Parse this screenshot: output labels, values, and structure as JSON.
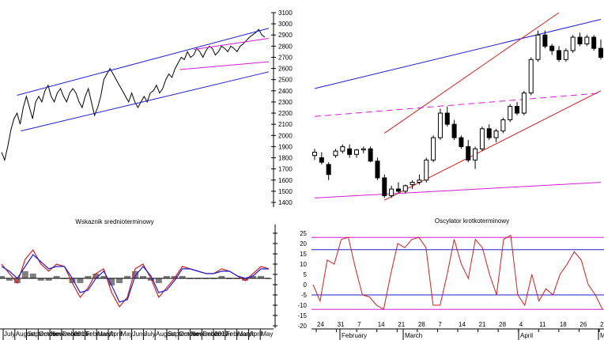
{
  "chart_data": [
    {
      "type": "line",
      "panel": "long-term-price",
      "title": "",
      "xlabel": "",
      "ylabel": "",
      "ylim": [
        1400,
        3100
      ],
      "x_tick_labels": [
        "July",
        "August",
        "September",
        "October",
        "November",
        "December",
        "2016",
        "February",
        "March",
        "April",
        "May",
        "June",
        "July",
        "August",
        "September",
        "October",
        "November",
        "December",
        "2017",
        "February",
        "March",
        "April",
        "May"
      ],
      "series": [
        {
          "color": "#000000",
          "x": [
            0,
            4,
            8,
            12,
            16,
            20,
            24,
            28,
            32,
            36,
            40,
            44,
            48,
            52,
            56,
            60,
            64,
            68,
            72,
            76,
            80,
            84,
            88,
            92,
            96,
            100,
            104,
            108,
            112,
            116,
            120,
            124,
            128,
            132,
            136,
            140,
            144,
            148,
            152,
            156,
            160,
            164,
            168,
            172,
            176,
            180,
            184,
            188,
            192,
            196,
            200,
            204,
            208,
            212,
            216,
            220,
            224,
            228,
            232,
            236,
            240,
            244,
            248,
            252,
            256,
            260,
            264,
            268,
            272,
            276,
            280,
            284,
            288,
            292,
            296,
            300,
            304,
            308,
            312,
            316,
            320,
            324,
            328,
            332,
            336,
            340
          ],
          "values": [
            1850,
            1780,
            1900,
            2050,
            2150,
            2200,
            2100,
            2250,
            2350,
            2250,
            2150,
            2300,
            2350,
            2300,
            2400,
            2450,
            2350,
            2300,
            2380,
            2420,
            2350,
            2300,
            2380,
            2420,
            2380,
            2300,
            2250,
            2350,
            2420,
            2300,
            2180,
            2250,
            2350,
            2500,
            2550,
            2600,
            2550,
            2500,
            2450,
            2400,
            2350,
            2300,
            2380,
            2300,
            2250,
            2300,
            2350,
            2300,
            2380,
            2400,
            2450,
            2380,
            2420,
            2500,
            2550,
            2520,
            2600,
            2650,
            2700,
            2680,
            2750,
            2700,
            2720,
            2780,
            2750,
            2700,
            2760,
            2800,
            2780,
            2720,
            2750,
            2800,
            2780,
            2750,
            2800,
            2780,
            2750,
            2800,
            2820,
            2850,
            2880,
            2900,
            2920,
            2950,
            2900,
            2880
          ]
        }
      ],
      "trendlines": [
        {
          "color": "#1e1ed2",
          "from": [
            20,
            2360
          ],
          "to": [
            345,
            2960
          ]
        },
        {
          "color": "#1e1ed2",
          "from": [
            25,
            2040
          ],
          "to": [
            345,
            2570
          ]
        },
        {
          "color": "#d21ed2",
          "from": [
            248,
            2770
          ],
          "to": [
            345,
            2870
          ]
        },
        {
          "color": "#d21ed2",
          "from": [
            230,
            2590
          ],
          "to": [
            345,
            2660
          ]
        }
      ]
    },
    {
      "type": "bar",
      "panel": "medium-term-indicator",
      "title": "Wskaznik srednioterminowy",
      "xlabel": "",
      "ylabel": "",
      "categories": [
        "July",
        "August",
        "September",
        "October",
        "November",
        "December",
        "2016",
        "February",
        "March",
        "April",
        "May",
        "June",
        "July",
        "August",
        "September",
        "October",
        "November",
        "December",
        "2017",
        "February",
        "March",
        "April",
        "May"
      ],
      "series": [
        {
          "color": "#d21e1e",
          "x": [
            0,
            10,
            20,
            30,
            40,
            50,
            60,
            70,
            80,
            90,
            100,
            110,
            120,
            130,
            140,
            150,
            160,
            170,
            180,
            190,
            200,
            210,
            220,
            230,
            240,
            250,
            260,
            270,
            280,
            290,
            300,
            310,
            320,
            330,
            340
          ],
          "values": [
            0.6,
            0.2,
            -0.2,
            0.8,
            1.2,
            0.6,
            0.3,
            0.6,
            0.5,
            -0.2,
            -0.8,
            -0.4,
            0.2,
            0.4,
            -0.6,
            -1.2,
            -0.8,
            0.4,
            0.6,
            0.0,
            -0.8,
            -0.4,
            0.0,
            0.5,
            0.4,
            0.3,
            0.2,
            0.2,
            0.4,
            0.3,
            0.1,
            -0.1,
            0.2,
            0.5,
            0.4
          ]
        },
        {
          "color": "#1e1ed2",
          "x": [
            0,
            10,
            20,
            30,
            40,
            50,
            60,
            70,
            80,
            90,
            100,
            110,
            120,
            130,
            140,
            150,
            160,
            170,
            180,
            190,
            200,
            210,
            220,
            230,
            240,
            250,
            260,
            270,
            280,
            290,
            300,
            310,
            320,
            330,
            340
          ],
          "values": [
            0.5,
            0.3,
            0.0,
            0.5,
            1.0,
            0.7,
            0.4,
            0.5,
            0.5,
            0.0,
            -0.6,
            -0.5,
            0.0,
            0.3,
            -0.3,
            -1.0,
            -0.9,
            0.1,
            0.5,
            0.1,
            -0.6,
            -0.5,
            -0.1,
            0.4,
            0.4,
            0.3,
            0.2,
            0.2,
            0.3,
            0.3,
            0.1,
            0.0,
            0.1,
            0.4,
            0.4
          ]
        }
      ],
      "histogram": [
        0.1,
        -0.1,
        -0.2,
        0.3,
        0.2,
        -0.1,
        -0.1,
        0.1,
        0.0,
        -0.2,
        -0.2,
        0.1,
        0.2,
        0.1,
        -0.3,
        -0.2,
        0.1,
        0.3,
        0.1,
        -0.1,
        -0.2,
        0.1,
        0.1,
        0.1,
        0.0,
        0.0,
        0.0,
        0.0,
        0.1,
        0.0,
        0.0,
        -0.1,
        0.1,
        0.1,
        0.0
      ],
      "histogram_color": "#808080",
      "zero_line_color": "#000000"
    },
    {
      "type": "candlestick",
      "panel": "short-term-price",
      "title": "",
      "xlabel": "",
      "ylabel": "",
      "ylim": [
        1400,
        3100
      ],
      "x_tick_labels": [
        "24",
        "31",
        "7",
        "14",
        "21",
        "28",
        "7",
        "14",
        "21",
        "28",
        "4",
        "11",
        "18",
        "26",
        "2"
      ],
      "month_labels": [
        "February",
        "March",
        "April",
        "M"
      ],
      "candles": [
        {
          "o": 1820,
          "h": 1880,
          "l": 1780,
          "c": 1850
        },
        {
          "o": 1800,
          "h": 1850,
          "l": 1740,
          "c": 1760
        },
        {
          "o": 1740,
          "h": 1760,
          "l": 1600,
          "c": 1650
        },
        {
          "o": 1820,
          "h": 1880,
          "l": 1800,
          "c": 1860
        },
        {
          "o": 1860,
          "h": 1920,
          "l": 1840,
          "c": 1900
        },
        {
          "o": 1880,
          "h": 1920,
          "l": 1800,
          "c": 1830
        },
        {
          "o": 1830,
          "h": 1880,
          "l": 1800,
          "c": 1870
        },
        {
          "o": 1870,
          "h": 1900,
          "l": 1840,
          "c": 1880
        },
        {
          "o": 1880,
          "h": 1900,
          "l": 1760,
          "c": 1770
        },
        {
          "o": 1770,
          "h": 1800,
          "l": 1600,
          "c": 1620
        },
        {
          "o": 1620,
          "h": 1650,
          "l": 1440,
          "c": 1460
        },
        {
          "o": 1460,
          "h": 1550,
          "l": 1440,
          "c": 1520
        },
        {
          "o": 1520,
          "h": 1580,
          "l": 1480,
          "c": 1500
        },
        {
          "o": 1500,
          "h": 1560,
          "l": 1480,
          "c": 1550
        },
        {
          "o": 1560,
          "h": 1600,
          "l": 1520,
          "c": 1580
        },
        {
          "o": 1580,
          "h": 1650,
          "l": 1560,
          "c": 1600
        },
        {
          "o": 1600,
          "h": 1800,
          "l": 1580,
          "c": 1780
        },
        {
          "o": 1780,
          "h": 2000,
          "l": 1760,
          "c": 1980
        },
        {
          "o": 1980,
          "h": 2240,
          "l": 1960,
          "c": 2200
        },
        {
          "o": 2200,
          "h": 2260,
          "l": 2080,
          "c": 2100
        },
        {
          "o": 2100,
          "h": 2140,
          "l": 1960,
          "c": 1980
        },
        {
          "o": 1980,
          "h": 2000,
          "l": 1880,
          "c": 1900
        },
        {
          "o": 1900,
          "h": 1960,
          "l": 1760,
          "c": 1780
        },
        {
          "o": 1780,
          "h": 1900,
          "l": 1700,
          "c": 1880
        },
        {
          "o": 1880,
          "h": 2080,
          "l": 1860,
          "c": 2060
        },
        {
          "o": 2060,
          "h": 2100,
          "l": 1960,
          "c": 1980
        },
        {
          "o": 1980,
          "h": 2060,
          "l": 1940,
          "c": 2040
        },
        {
          "o": 2040,
          "h": 2160,
          "l": 2020,
          "c": 2140
        },
        {
          "o": 2140,
          "h": 2280,
          "l": 2120,
          "c": 2260
        },
        {
          "o": 2260,
          "h": 2300,
          "l": 2180,
          "c": 2200
        },
        {
          "o": 2200,
          "h": 2400,
          "l": 2180,
          "c": 2380
        },
        {
          "o": 2380,
          "h": 2700,
          "l": 2360,
          "c": 2680
        },
        {
          "o": 2680,
          "h": 2940,
          "l": 2660,
          "c": 2900
        },
        {
          "o": 2900,
          "h": 2940,
          "l": 2780,
          "c": 2800
        },
        {
          "o": 2800,
          "h": 2820,
          "l": 2720,
          "c": 2760
        },
        {
          "o": 2760,
          "h": 2800,
          "l": 2660,
          "c": 2680
        },
        {
          "o": 2680,
          "h": 2780,
          "l": 2660,
          "c": 2760
        },
        {
          "o": 2760,
          "h": 2900,
          "l": 2740,
          "c": 2880
        },
        {
          "o": 2880,
          "h": 2920,
          "l": 2800,
          "c": 2820
        },
        {
          "o": 2820,
          "h": 2900,
          "l": 2800,
          "c": 2880
        },
        {
          "o": 2880,
          "h": 2900,
          "l": 2760,
          "c": 2780
        },
        {
          "o": 2780,
          "h": 2860,
          "l": 2680,
          "c": 2700
        }
      ],
      "trendlines": [
        {
          "color": "#1e1ed2",
          "from": [
            0,
            2420
          ],
          "to": [
            41,
            3040
          ]
        },
        {
          "color": "#d21e1e",
          "from": [
            10,
            2020
          ],
          "to": [
            35,
            3100
          ]
        },
        {
          "color": "#d21e1e",
          "from": [
            10,
            1420
          ],
          "to": [
            41,
            2400
          ]
        },
        {
          "color": "#d21ed2",
          "from": [
            0,
            2170
          ],
          "to": [
            41,
            2380
          ],
          "dashed": true
        },
        {
          "color": "#d21ed2",
          "from": [
            0,
            1440
          ],
          "to": [
            41,
            1580
          ]
        }
      ]
    },
    {
      "type": "line",
      "panel": "short-term-oscillator",
      "title": "Oscylator krotkoterminowy",
      "xlabel": "",
      "ylabel": "",
      "ylim": [
        -20,
        25
      ],
      "yticks": [
        25,
        20,
        15,
        10,
        5,
        0,
        -5,
        -10,
        -15,
        -20
      ],
      "series": [
        {
          "color": "#d21e1e",
          "x": [
            0,
            1,
            2,
            3,
            4,
            5,
            6,
            7,
            8,
            9,
            10,
            11,
            12,
            13,
            14,
            15,
            16,
            17,
            18,
            19,
            20,
            21,
            22,
            23,
            24,
            25,
            26,
            27,
            28,
            29,
            30,
            31,
            32,
            33,
            34,
            35,
            36,
            37,
            38,
            39,
            40,
            41
          ],
          "values": [
            0,
            -8,
            12,
            10,
            22,
            23,
            8,
            -5,
            -6,
            -10,
            -12,
            5,
            20,
            18,
            22,
            23,
            18,
            -10,
            -10,
            5,
            22,
            10,
            3,
            22,
            18,
            5,
            -5,
            22,
            24,
            -5,
            -10,
            5,
            -8,
            -2,
            -5,
            5,
            10,
            16,
            12,
            0,
            -5,
            -12
          ]
        }
      ],
      "h_lines": [
        {
          "value": 23,
          "color": "#d21ed2"
        },
        {
          "value": 17,
          "color": "#1e1ed2"
        },
        {
          "value": -5,
          "color": "#1e1ed2"
        },
        {
          "value": -12,
          "color": "#d21ed2"
        }
      ]
    }
  ],
  "price_axis_labels": [
    "3100",
    "3000",
    "2900",
    "2800",
    "2700",
    "2600",
    "2500",
    "2400",
    "2300",
    "2200",
    "2100",
    "2000",
    "1900",
    "1800",
    "1700",
    "1600",
    "1500",
    "1400"
  ],
  "oscillator_axis_labels": [
    "25",
    "20",
    "15",
    "10",
    "5",
    "0",
    "-5",
    "-10",
    "-15",
    "-20"
  ]
}
